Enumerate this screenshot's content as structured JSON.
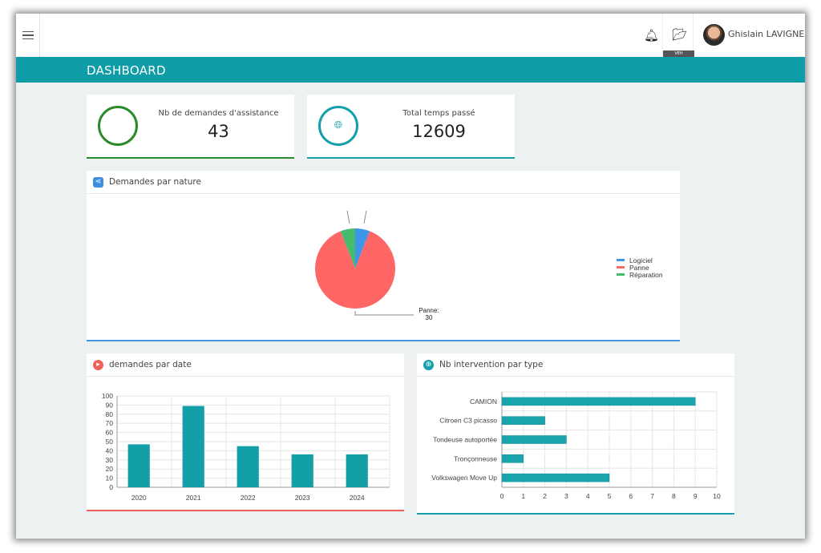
{
  "header": {
    "user_name": "Ghislain LAVIGNE",
    "folder_badge": "VEH",
    "page_title": "DASHBOARD"
  },
  "kpis": [
    {
      "label": "Nb de demandes d'assistance",
      "value": "43",
      "color": "#2a8a2a"
    },
    {
      "label": "Total temps passé",
      "value": "12609",
      "color": "#13a0ab"
    }
  ],
  "pie_panel": {
    "title": "Demandes par nature"
  },
  "bar_panel": {
    "title": "demandes par date"
  },
  "hbar_panel": {
    "title": "Nb intervention par type"
  },
  "chart_data": [
    {
      "type": "pie",
      "categories": [
        "Logiciel",
        "Panne",
        "Réparation"
      ],
      "values": [
        2,
        30,
        2
      ],
      "colors": [
        "#3f95e6",
        "#ff6666",
        "#45bb6e"
      ],
      "data_label": {
        "text": "Panne:",
        "value": "30"
      },
      "legend": "right"
    },
    {
      "type": "bar",
      "categories": [
        "2020",
        "2021",
        "2022",
        "2023",
        "2024"
      ],
      "values": [
        47,
        89,
        45,
        36,
        36
      ],
      "ylim": [
        0,
        100
      ],
      "yticks": [
        0,
        10,
        20,
        30,
        40,
        50,
        60,
        70,
        80,
        90,
        100
      ],
      "grid": true,
      "color": "#129fa8"
    },
    {
      "type": "bar",
      "orientation": "horizontal",
      "categories": [
        "CAMION",
        "Citroen C3 picasso",
        "Tondeuse autoportée",
        "Tronçonneuse",
        "Volkswagen Move Up"
      ],
      "values": [
        9,
        2,
        3,
        1,
        5
      ],
      "xlim": [
        0,
        10
      ],
      "xticks": [
        0,
        1,
        2,
        3,
        4,
        5,
        6,
        7,
        8,
        9,
        10
      ],
      "grid": true,
      "color": "#1aa5ad"
    }
  ]
}
